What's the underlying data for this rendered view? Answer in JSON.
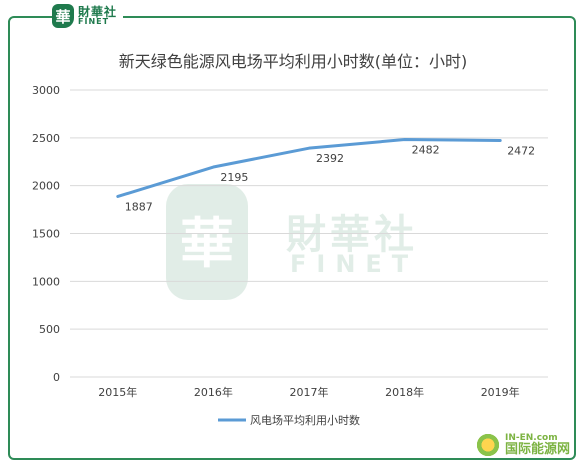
{
  "logo": {
    "mark": "華",
    "cn": "財華社",
    "en": "FINET"
  },
  "watermark": {
    "mark": "華",
    "cn": "財華社",
    "en": "FINET"
  },
  "corner_logo": {
    "en": "IN-EN.com",
    "cn": "国际能源网"
  },
  "colors": {
    "line": "#5b9bd5",
    "frame": "#2e8b57",
    "grid": "#d9d9d9",
    "text": "#404040"
  },
  "chart_data": {
    "type": "line",
    "title": "新天绿色能源风电场平均利用小时数(单位：小时)",
    "categories": [
      "2015年",
      "2016年",
      "2017年",
      "2018年",
      "2019年"
    ],
    "series": [
      {
        "name": "风电场平均利用小时数",
        "values": [
          1887,
          2195,
          2392,
          2482,
          2472
        ]
      }
    ],
    "ylim": [
      0,
      3000
    ],
    "yticks": [
      0,
      500,
      1000,
      1500,
      2000,
      2500,
      3000
    ],
    "grid": true,
    "legend": "bottom"
  }
}
